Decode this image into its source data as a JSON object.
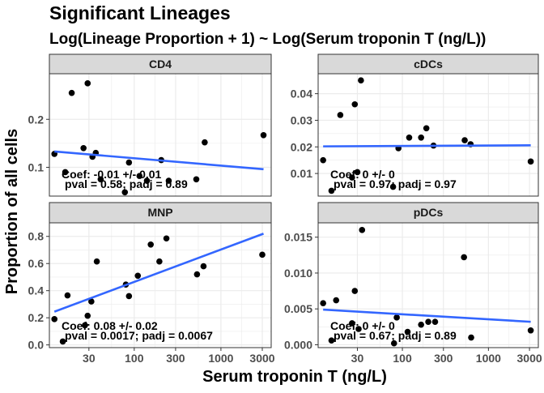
{
  "chart_data": {
    "type": "scatter",
    "title": "Significant Lineages",
    "subtitle": "Log(Lineage Proportion + 1) ~ Log(Serum troponin T (ng/L))",
    "xlabel": "Serum troponin T (ng/L)",
    "ylabel": "Proportion of all cells",
    "x_scale": "log10",
    "x_ticks": [
      30,
      100,
      300,
      1000,
      3000
    ],
    "x_tick_labels": [
      "30",
      "100",
      "300",
      "1000",
      "3000"
    ],
    "xlim": [
      10.5,
      3800
    ],
    "grid": true,
    "colors": {
      "points": "#000000",
      "fit_line": "#3366FF",
      "strip_bg": "#D9D9D9",
      "panel_border": "#333333",
      "grid": "#EBEBEB"
    },
    "panels": [
      {
        "name": "CD4",
        "ylim": [
          0.04,
          0.295
        ],
        "y_ticks": [
          0.1,
          0.2
        ],
        "y_tick_labels": [
          "0.1",
          "0.2"
        ],
        "points": [
          {
            "x": 12,
            "y": 0.128
          },
          {
            "x": 16,
            "y": 0.09
          },
          {
            "x": 19,
            "y": 0.255
          },
          {
            "x": 26,
            "y": 0.14
          },
          {
            "x": 29,
            "y": 0.275
          },
          {
            "x": 33,
            "y": 0.122
          },
          {
            "x": 36,
            "y": 0.13
          },
          {
            "x": 41,
            "y": 0.075
          },
          {
            "x": 78,
            "y": 0.048
          },
          {
            "x": 87,
            "y": 0.11
          },
          {
            "x": 115,
            "y": 0.082
          },
          {
            "x": 140,
            "y": 0.072
          },
          {
            "x": 205,
            "y": 0.115
          },
          {
            "x": 250,
            "y": 0.072
          },
          {
            "x": 520,
            "y": 0.075
          },
          {
            "x": 650,
            "y": 0.152
          },
          {
            "x": 3100,
            "y": 0.167
          }
        ],
        "fit": {
          "x": [
            12,
            3100
          ],
          "y": [
            0.133,
            0.096
          ]
        },
        "annotation_coef": "Coef: -0.01 +/- 0.01",
        "annotation_p": "pval = 0.58; padj = 0.89"
      },
      {
        "name": "cDCs",
        "ylim": [
          0.0015,
          0.0475
        ],
        "y_ticks": [
          0.01,
          0.02,
          0.03,
          0.04
        ],
        "y_tick_labels": [
          "0.01",
          "0.02",
          "0.03",
          "0.04"
        ],
        "points": [
          {
            "x": 12,
            "y": 0.015
          },
          {
            "x": 15,
            "y": 0.0035
          },
          {
            "x": 19,
            "y": 0.032
          },
          {
            "x": 26,
            "y": 0.0085
          },
          {
            "x": 28,
            "y": 0.036
          },
          {
            "x": 30,
            "y": 0.0105
          },
          {
            "x": 33,
            "y": 0.045
          },
          {
            "x": 78,
            "y": 0.005
          },
          {
            "x": 90,
            "y": 0.0195
          },
          {
            "x": 120,
            "y": 0.0235
          },
          {
            "x": 165,
            "y": 0.0235
          },
          {
            "x": 190,
            "y": 0.027
          },
          {
            "x": 230,
            "y": 0.0205
          },
          {
            "x": 530,
            "y": 0.0225
          },
          {
            "x": 620,
            "y": 0.021
          },
          {
            "x": 3100,
            "y": 0.0145
          }
        ],
        "fit": {
          "x": [
            12,
            3100
          ],
          "y": [
            0.0202,
            0.0206
          ]
        },
        "annotation_coef": "Coef: 0 +/- 0",
        "annotation_p": "pval = 0.97; padj = 0.97"
      },
      {
        "name": "MNP",
        "ylim": [
          -0.02,
          0.9
        ],
        "y_ticks": [
          0,
          0.2,
          0.4,
          0.6,
          0.8
        ],
        "y_tick_labels": [
          "0.0",
          "0.2",
          "0.4",
          "0.6",
          "0.8"
        ],
        "points": [
          {
            "x": 12,
            "y": 0.19
          },
          {
            "x": 15,
            "y": 0.025
          },
          {
            "x": 17,
            "y": 0.365
          },
          {
            "x": 27,
            "y": 0.145
          },
          {
            "x": 29,
            "y": 0.215
          },
          {
            "x": 32,
            "y": 0.32
          },
          {
            "x": 37,
            "y": 0.615
          },
          {
            "x": 80,
            "y": 0.445
          },
          {
            "x": 87,
            "y": 0.36
          },
          {
            "x": 110,
            "y": 0.51
          },
          {
            "x": 155,
            "y": 0.74
          },
          {
            "x": 195,
            "y": 0.615
          },
          {
            "x": 235,
            "y": 0.785
          },
          {
            "x": 530,
            "y": 0.52
          },
          {
            "x": 630,
            "y": 0.58
          },
          {
            "x": 3000,
            "y": 0.665
          }
        ],
        "fit": {
          "x": [
            12,
            3100
          ],
          "y": [
            0.245,
            0.82
          ]
        },
        "annotation_coef": "Coef: 0.08 +/- 0.02",
        "annotation_p": "pval = 0.0017; padj = 0.0067"
      },
      {
        "name": "pDCs",
        "ylim": [
          -0.0004,
          0.017
        ],
        "y_ticks": [
          0,
          0.005,
          0.01,
          0.015
        ],
        "y_tick_labels": [
          "0.000",
          "0.005",
          "0.010",
          "0.015"
        ],
        "points": [
          {
            "x": 12,
            "y": 0.0058
          },
          {
            "x": 15,
            "y": 0.0006
          },
          {
            "x": 17,
            "y": 0.0062
          },
          {
            "x": 26,
            "y": 0.003
          },
          {
            "x": 28,
            "y": 0.0075
          },
          {
            "x": 31,
            "y": 0.0022
          },
          {
            "x": 34,
            "y": 0.016
          },
          {
            "x": 80,
            "y": 0.0002
          },
          {
            "x": 86,
            "y": 0.0038
          },
          {
            "x": 115,
            "y": 0.0018
          },
          {
            "x": 165,
            "y": 0.0028
          },
          {
            "x": 200,
            "y": 0.0032
          },
          {
            "x": 240,
            "y": 0.0032
          },
          {
            "x": 520,
            "y": 0.0122
          },
          {
            "x": 630,
            "y": 0.001
          },
          {
            "x": 3100,
            "y": 0.002
          }
        ],
        "fit": {
          "x": [
            12,
            3100
          ],
          "y": [
            0.0049,
            0.0032
          ]
        },
        "annotation_coef": "Coef: 0 +/- 0",
        "annotation_p": "pval = 0.67; padj = 0.89"
      }
    ]
  }
}
